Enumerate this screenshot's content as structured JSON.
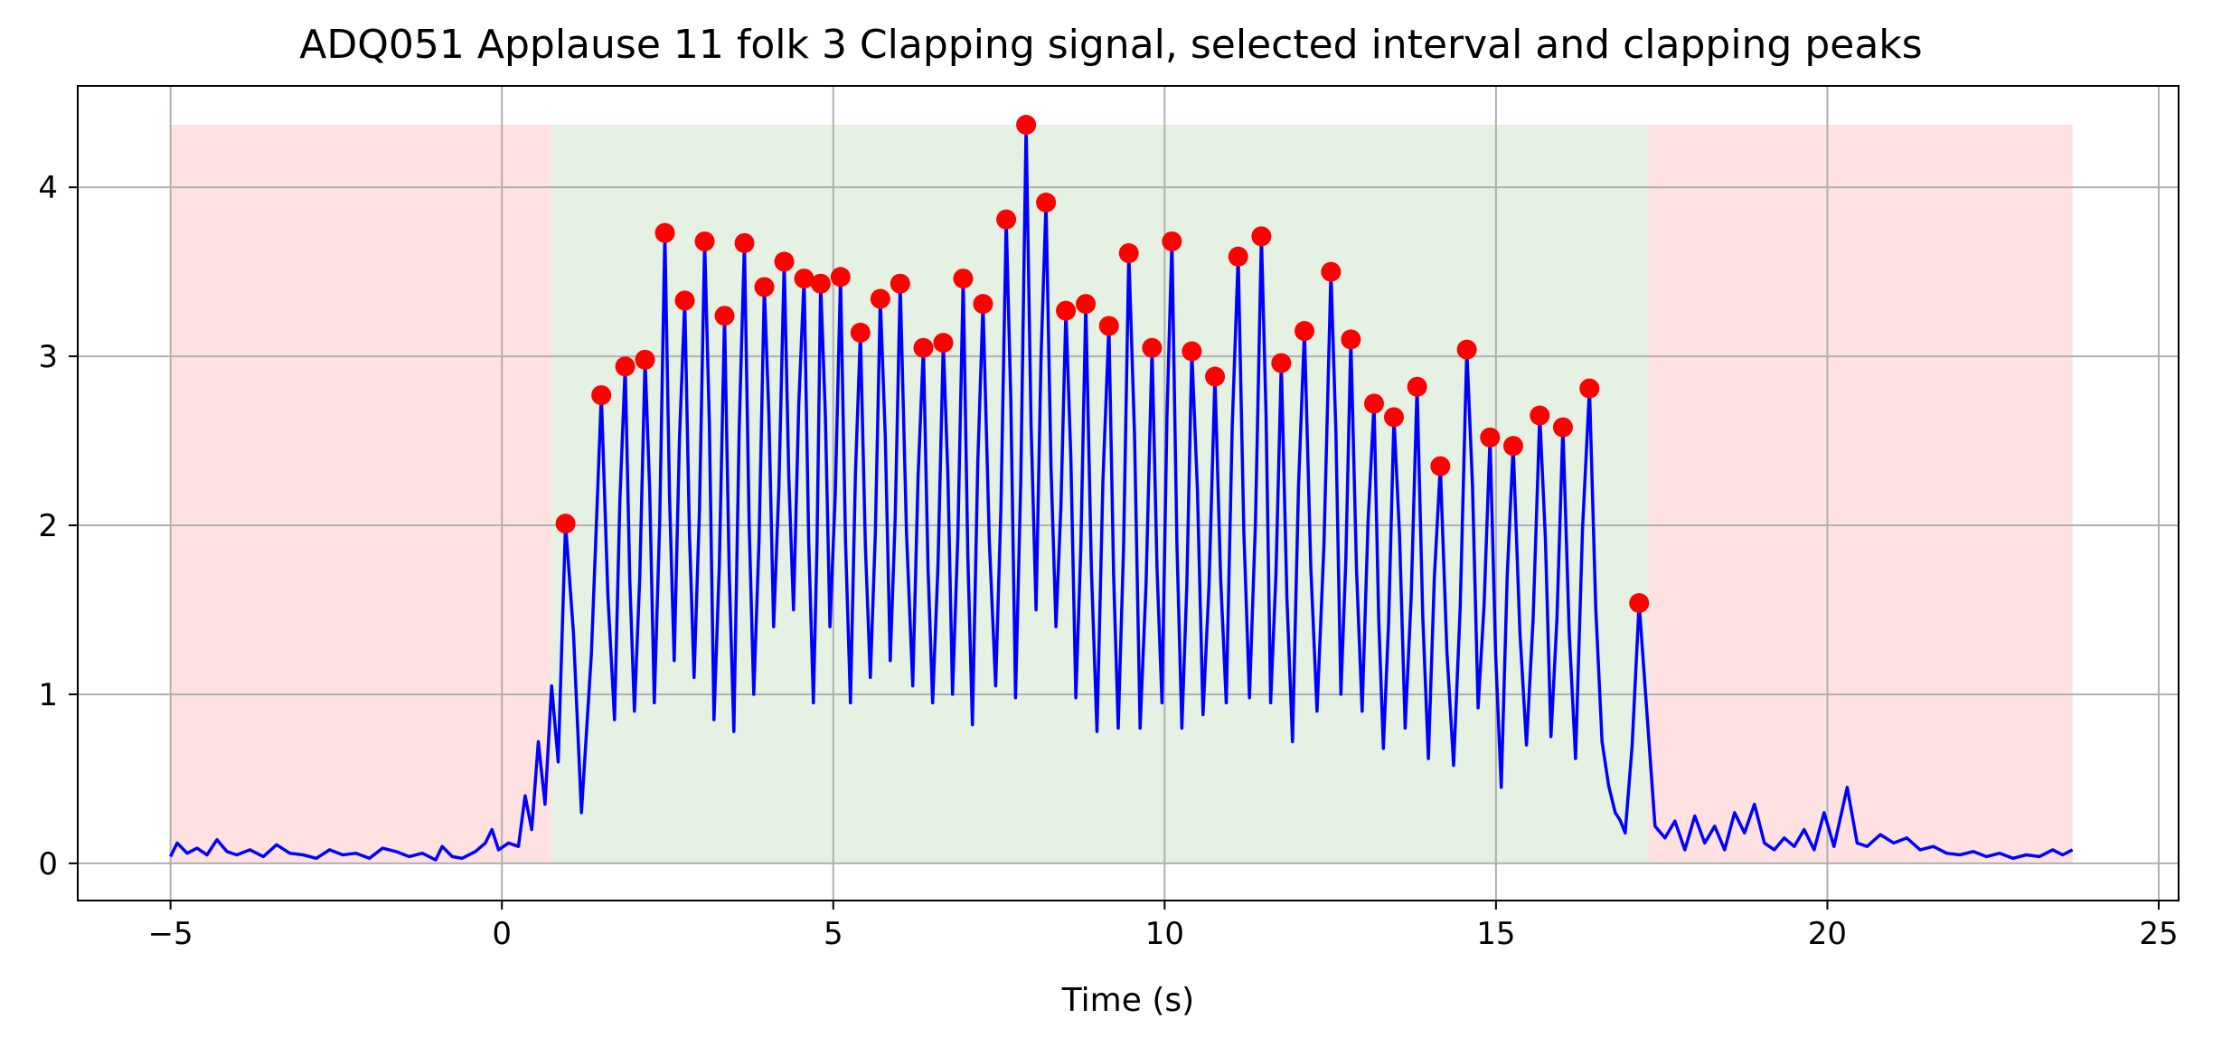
{
  "chart_data": {
    "type": "line",
    "title": "ADQ051 Applause 11 folk 3 Clapping signal, selected interval and clapping peaks",
    "xlabel": "Time (s)",
    "ylabel": "",
    "xlim": [
      -6.4,
      25.3
    ],
    "ylim": [
      -0.22,
      4.6
    ],
    "xticks": [
      -5,
      0,
      5,
      10,
      15,
      20,
      25
    ],
    "yticks": [
      0,
      1,
      2,
      3,
      4
    ],
    "grid": true,
    "colors": {
      "signal": "#0000ff",
      "peaks": "#ff0000",
      "selected_interval": "#e4f1e3",
      "excluded_interval": "#ffe1e2",
      "grid": "#b0b0b0"
    },
    "intervals": [
      {
        "kind": "excluded",
        "x": [
          -5,
          0.75
        ]
      },
      {
        "kind": "selected",
        "x": [
          0.75,
          17.3
        ]
      },
      {
        "kind": "excluded",
        "x": [
          17.3,
          23.7
        ]
      }
    ],
    "interval_top": 4.37,
    "signal_baseline": [
      [
        -5.0,
        0.04
      ],
      [
        -4.9,
        0.12
      ],
      [
        -4.75,
        0.06
      ],
      [
        -4.6,
        0.09
      ],
      [
        -4.45,
        0.05
      ],
      [
        -4.3,
        0.14
      ],
      [
        -4.15,
        0.07
      ],
      [
        -4.0,
        0.05
      ],
      [
        -3.8,
        0.08
      ],
      [
        -3.6,
        0.04
      ],
      [
        -3.4,
        0.11
      ],
      [
        -3.2,
        0.06
      ],
      [
        -3.0,
        0.05
      ],
      [
        -2.8,
        0.03
      ],
      [
        -2.6,
        0.08
      ],
      [
        -2.4,
        0.05
      ],
      [
        -2.2,
        0.06
      ],
      [
        -2.0,
        0.03
      ],
      [
        -1.8,
        0.09
      ],
      [
        -1.6,
        0.07
      ],
      [
        -1.4,
        0.04
      ],
      [
        -1.2,
        0.06
      ],
      [
        -1.0,
        0.02
      ],
      [
        -0.9,
        0.1
      ],
      [
        -0.75,
        0.04
      ],
      [
        -0.6,
        0.03
      ],
      [
        -0.4,
        0.07
      ],
      [
        -0.25,
        0.12
      ],
      [
        -0.15,
        0.2
      ],
      [
        -0.05,
        0.08
      ],
      [
        0.1,
        0.12
      ],
      [
        0.25,
        0.1
      ],
      [
        0.35,
        0.4
      ],
      [
        0.45,
        0.2
      ],
      [
        0.55,
        0.72
      ],
      [
        0.65,
        0.35
      ],
      [
        0.75,
        1.05
      ],
      [
        0.85,
        0.6
      ]
    ],
    "signal_tail": [
      [
        17.4,
        0.22
      ],
      [
        17.55,
        0.15
      ],
      [
        17.7,
        0.25
      ],
      [
        17.85,
        0.08
      ],
      [
        18.0,
        0.28
      ],
      [
        18.15,
        0.12
      ],
      [
        18.3,
        0.22
      ],
      [
        18.45,
        0.08
      ],
      [
        18.6,
        0.3
      ],
      [
        18.75,
        0.18
      ],
      [
        18.9,
        0.35
      ],
      [
        19.05,
        0.12
      ],
      [
        19.2,
        0.08
      ],
      [
        19.35,
        0.15
      ],
      [
        19.5,
        0.1
      ],
      [
        19.65,
        0.2
      ],
      [
        19.8,
        0.08
      ],
      [
        19.95,
        0.3
      ],
      [
        20.1,
        0.1
      ],
      [
        20.3,
        0.45
      ],
      [
        20.45,
        0.12
      ],
      [
        20.6,
        0.1
      ],
      [
        20.8,
        0.17
      ],
      [
        21.0,
        0.12
      ],
      [
        21.2,
        0.15
      ],
      [
        21.4,
        0.08
      ],
      [
        21.6,
        0.1
      ],
      [
        21.8,
        0.06
      ],
      [
        22.0,
        0.05
      ],
      [
        22.2,
        0.07
      ],
      [
        22.4,
        0.04
      ],
      [
        22.6,
        0.06
      ],
      [
        22.8,
        0.03
      ],
      [
        23.0,
        0.05
      ],
      [
        23.2,
        0.04
      ],
      [
        23.4,
        0.08
      ],
      [
        23.55,
        0.05
      ],
      [
        23.7,
        0.08
      ]
    ],
    "peaks": [
      [
        0.96,
        2.01
      ],
      [
        1.5,
        2.77
      ],
      [
        1.86,
        2.94
      ],
      [
        2.16,
        2.98
      ],
      [
        2.46,
        3.73
      ],
      [
        2.76,
        3.33
      ],
      [
        3.06,
        3.68
      ],
      [
        3.36,
        3.24
      ],
      [
        3.66,
        3.67
      ],
      [
        3.96,
        3.41
      ],
      [
        4.26,
        3.56
      ],
      [
        4.56,
        3.46
      ],
      [
        4.81,
        3.43
      ],
      [
        5.11,
        3.47
      ],
      [
        5.41,
        3.14
      ],
      [
        5.71,
        3.34
      ],
      [
        6.01,
        3.43
      ],
      [
        6.36,
        3.05
      ],
      [
        6.66,
        3.08
      ],
      [
        6.96,
        3.46
      ],
      [
        7.26,
        3.31
      ],
      [
        7.61,
        3.81
      ],
      [
        7.91,
        4.37
      ],
      [
        8.21,
        3.91
      ],
      [
        8.51,
        3.27
      ],
      [
        8.81,
        3.31
      ],
      [
        9.16,
        3.18
      ],
      [
        9.46,
        3.61
      ],
      [
        9.81,
        3.05
      ],
      [
        10.11,
        3.68
      ],
      [
        10.41,
        3.03
      ],
      [
        10.76,
        2.88
      ],
      [
        11.11,
        3.59
      ],
      [
        11.46,
        3.71
      ],
      [
        11.76,
        2.96
      ],
      [
        12.11,
        3.15
      ],
      [
        12.51,
        3.5
      ],
      [
        12.81,
        3.1
      ],
      [
        13.16,
        2.72
      ],
      [
        13.46,
        2.64
      ],
      [
        13.81,
        2.82
      ],
      [
        14.16,
        2.35
      ],
      [
        14.56,
        3.04
      ],
      [
        14.91,
        2.52
      ],
      [
        15.26,
        2.47
      ],
      [
        15.66,
        2.65
      ],
      [
        16.01,
        2.58
      ],
      [
        16.41,
        2.81
      ],
      [
        17.16,
        1.54
      ]
    ],
    "peak_troughs": [
      [
        1.2,
        0.3
      ],
      [
        1.7,
        0.85
      ],
      [
        2.0,
        0.9
      ],
      [
        2.3,
        0.95
      ],
      [
        2.6,
        1.2
      ],
      [
        2.9,
        1.1
      ],
      [
        3.2,
        0.85
      ],
      [
        3.5,
        0.78
      ],
      [
        3.8,
        1.0
      ],
      [
        4.1,
        1.4
      ],
      [
        4.4,
        1.5
      ],
      [
        4.7,
        0.95
      ],
      [
        4.95,
        1.4
      ],
      [
        5.26,
        0.95
      ],
      [
        5.56,
        1.1
      ],
      [
        5.86,
        1.2
      ],
      [
        6.2,
        1.05
      ],
      [
        6.5,
        0.95
      ],
      [
        6.8,
        1.0
      ],
      [
        7.1,
        0.82
      ],
      [
        7.45,
        1.05
      ],
      [
        7.75,
        0.98
      ],
      [
        8.06,
        1.5
      ],
      [
        8.36,
        1.4
      ],
      [
        8.66,
        0.98
      ],
      [
        8.98,
        0.78
      ],
      [
        9.3,
        0.8
      ],
      [
        9.63,
        0.8
      ],
      [
        9.96,
        0.95
      ],
      [
        10.26,
        0.8
      ],
      [
        10.58,
        0.88
      ],
      [
        10.93,
        0.95
      ],
      [
        11.28,
        0.98
      ],
      [
        11.6,
        0.95
      ],
      [
        11.93,
        0.72
      ],
      [
        12.3,
        0.9
      ],
      [
        12.66,
        1.0
      ],
      [
        12.98,
        0.9
      ],
      [
        13.3,
        0.68
      ],
      [
        13.63,
        0.8
      ],
      [
        13.98,
        0.62
      ],
      [
        14.36,
        0.58
      ],
      [
        14.73,
        0.92
      ],
      [
        15.08,
        0.45
      ],
      [
        15.46,
        0.7
      ],
      [
        15.83,
        0.75
      ],
      [
        16.2,
        0.62
      ],
      [
        16.6,
        0.72
      ],
      [
        16.8,
        0.3
      ],
      [
        16.95,
        0.18
      ]
    ]
  }
}
